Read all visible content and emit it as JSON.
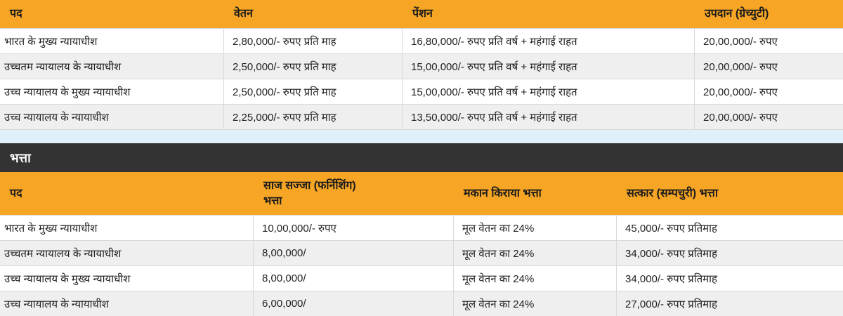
{
  "colors": {
    "header_bg": "#F6A524",
    "section_bar_bg": "#333333",
    "section_bar_text": "#FFFFFF",
    "row_bg": "#FFFFFF",
    "row_alt_bg": "#EFEFEF",
    "gap_band_bg": "#DFF0FB",
    "border": "#D9D9D9",
    "text": "#1E1E1E"
  },
  "section_title": "भत्ता",
  "salary_table": {
    "headers": [
      "पद",
      "वेतन",
      "पेंशन",
      "उपदान (ग्रेच्युटी)"
    ],
    "rows": [
      [
        "भारत के मुख्य न्यायाधीश",
        "2,80,000/- रुपए प्रति माह",
        "16,80,000/- रुपए प्रति वर्ष + महंगाई राहत",
        "20,00,000/- रुपए"
      ],
      [
        "उच्चतम न्यायालय के न्यायाधीश",
        "2,50,000/- रुपए प्रति माह",
        "15,00,000/- रुपए प्रति वर्ष + महंगाई राहत",
        "20,00,000/- रुपए"
      ],
      [
        "उच्च न्यायालय के मुख्य न्यायाधीश",
        "2,50,000/- रुपए प्रति माह",
        "15,00,000/- रुपए प्रति वर्ष + महंगाई राहत",
        "20,00,000/- रुपए"
      ],
      [
        "उच्च न्यायालय के न्यायाधीश",
        "2,25,000/- रुपए प्रति माह",
        "13,50,000/- रुपए प्रति वर्ष + महंगाई राहत",
        "20,00,000/- रुपए"
      ]
    ]
  },
  "allowance_table": {
    "headers": [
      "पद",
      "साज सज्जा (फर्निशिंग)\nभत्ता",
      "मकान किराया भत्ता",
      "सत्कार (सम्पचुरी) भत्ता"
    ],
    "rows": [
      [
        "भारत के मुख्य न्यायाधीश",
        "10,00,000/- रुपए",
        "मूल वेतन का 24%",
        "45,000/- रुपए प्रतिमाह"
      ],
      [
        "उच्चतम न्यायालय के न्यायाधीश",
        "8,00,000/",
        "मूल वेतन का 24%",
        "34,000/- रुपए प्रतिमाह"
      ],
      [
        "उच्च न्यायालय के मुख्य न्यायाधीश",
        "8,00,000/",
        "मूल वेतन का 24%",
        "34,000/- रुपए प्रतिमाह"
      ],
      [
        "उच्च न्यायालय के न्यायाधीश",
        "6,00,000/",
        "मूल वेतन का 24%",
        "27,000/- रुपए प्रतिमाह"
      ]
    ]
  }
}
